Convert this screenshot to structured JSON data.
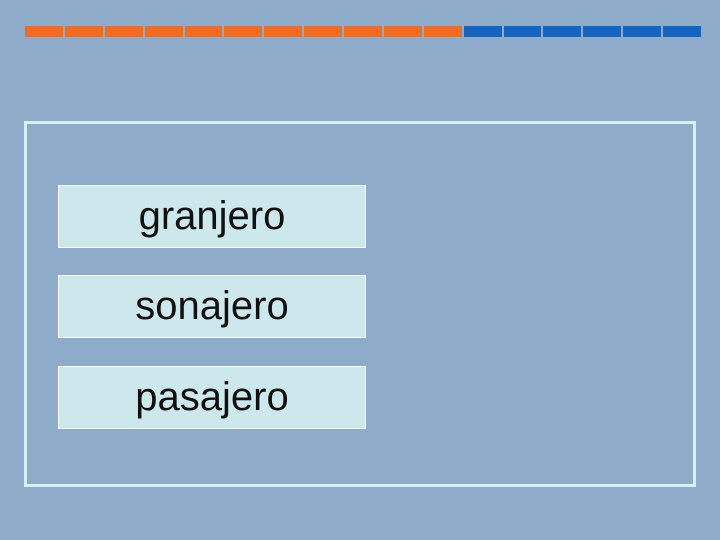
{
  "progress": {
    "total_segments": 17,
    "completed_segments": 11,
    "completed_color": "#f46a1f",
    "remaining_color": "#1565c0"
  },
  "options": [
    {
      "label": "granjero"
    },
    {
      "label": "sonajero"
    },
    {
      "label": "pasajero"
    }
  ],
  "colors": {
    "background": "#8eabc9",
    "card_fill": "#cde8ec",
    "frame_border": "#d4f2f6"
  }
}
